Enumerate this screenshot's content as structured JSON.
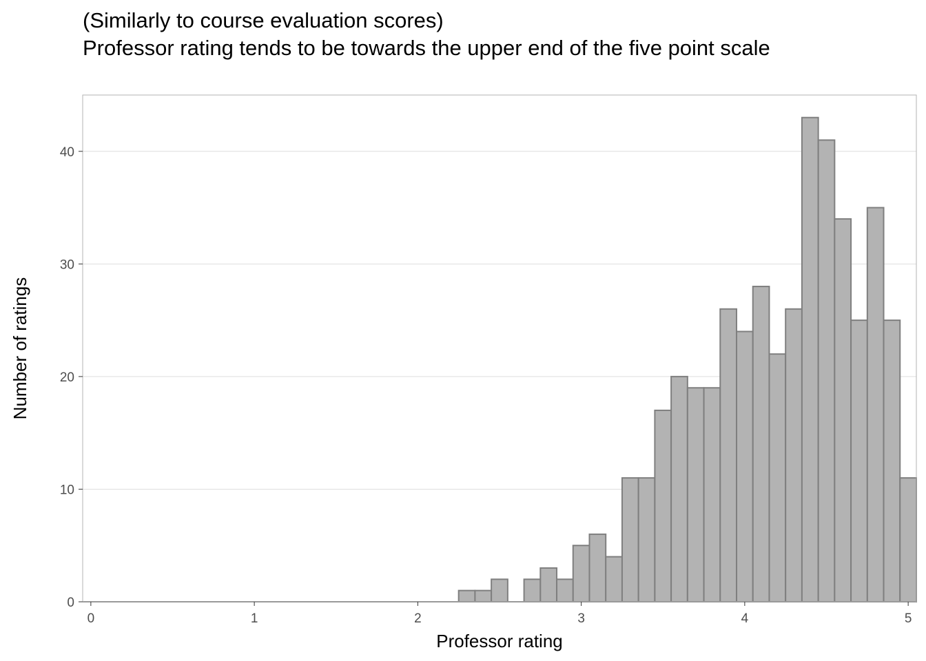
{
  "chart_data": {
    "type": "bar",
    "title": "(Similarly to course evaluation scores)",
    "subtitle": "Professor rating tends to be towards the upper end of the five point scale",
    "xlabel": "Professor rating",
    "ylabel": "Number of ratings",
    "xlim": [
      -0.05,
      5.05
    ],
    "ylim": [
      0,
      45
    ],
    "x_ticks": [
      0,
      1,
      2,
      3,
      4,
      5
    ],
    "y_ticks": [
      0,
      10,
      20,
      30,
      40
    ],
    "grid": "horizontal",
    "bin_width": 0.1,
    "bins": [
      {
        "x0": 2.25,
        "x1": 2.35,
        "count": 1
      },
      {
        "x0": 2.35,
        "x1": 2.45,
        "count": 1
      },
      {
        "x0": 2.45,
        "x1": 2.55,
        "count": 2
      },
      {
        "x0": 2.55,
        "x1": 2.65,
        "count": 0
      },
      {
        "x0": 2.65,
        "x1": 2.75,
        "count": 2
      },
      {
        "x0": 2.75,
        "x1": 2.85,
        "count": 3
      },
      {
        "x0": 2.85,
        "x1": 2.95,
        "count": 2
      },
      {
        "x0": 2.95,
        "x1": 3.05,
        "count": 5
      },
      {
        "x0": 3.05,
        "x1": 3.15,
        "count": 6
      },
      {
        "x0": 3.15,
        "x1": 3.25,
        "count": 4
      },
      {
        "x0": 3.25,
        "x1": 3.35,
        "count": 11
      },
      {
        "x0": 3.35,
        "x1": 3.45,
        "count": 11
      },
      {
        "x0": 3.45,
        "x1": 3.55,
        "count": 17
      },
      {
        "x0": 3.55,
        "x1": 3.65,
        "count": 20
      },
      {
        "x0": 3.65,
        "x1": 3.75,
        "count": 19
      },
      {
        "x0": 3.75,
        "x1": 3.85,
        "count": 19
      },
      {
        "x0": 3.85,
        "x1": 3.95,
        "count": 26
      },
      {
        "x0": 3.95,
        "x1": 4.05,
        "count": 24
      },
      {
        "x0": 4.05,
        "x1": 4.15,
        "count": 28
      },
      {
        "x0": 4.15,
        "x1": 4.25,
        "count": 22
      },
      {
        "x0": 4.25,
        "x1": 4.35,
        "count": 26
      },
      {
        "x0": 4.35,
        "x1": 4.45,
        "count": 43
      },
      {
        "x0": 4.45,
        "x1": 4.55,
        "count": 41
      },
      {
        "x0": 4.55,
        "x1": 4.65,
        "count": 34
      },
      {
        "x0": 4.65,
        "x1": 4.75,
        "count": 25
      },
      {
        "x0": 4.75,
        "x1": 4.85,
        "count": 35
      },
      {
        "x0": 4.85,
        "x1": 4.95,
        "count": 25
      },
      {
        "x0": 4.95,
        "x1": 5.05,
        "count": 11
      }
    ],
    "bar_fill": "#b3b3b3",
    "bar_stroke": "#7f7f7f",
    "grid_color": "#dedede",
    "panel_border": "#b3b3b3"
  }
}
